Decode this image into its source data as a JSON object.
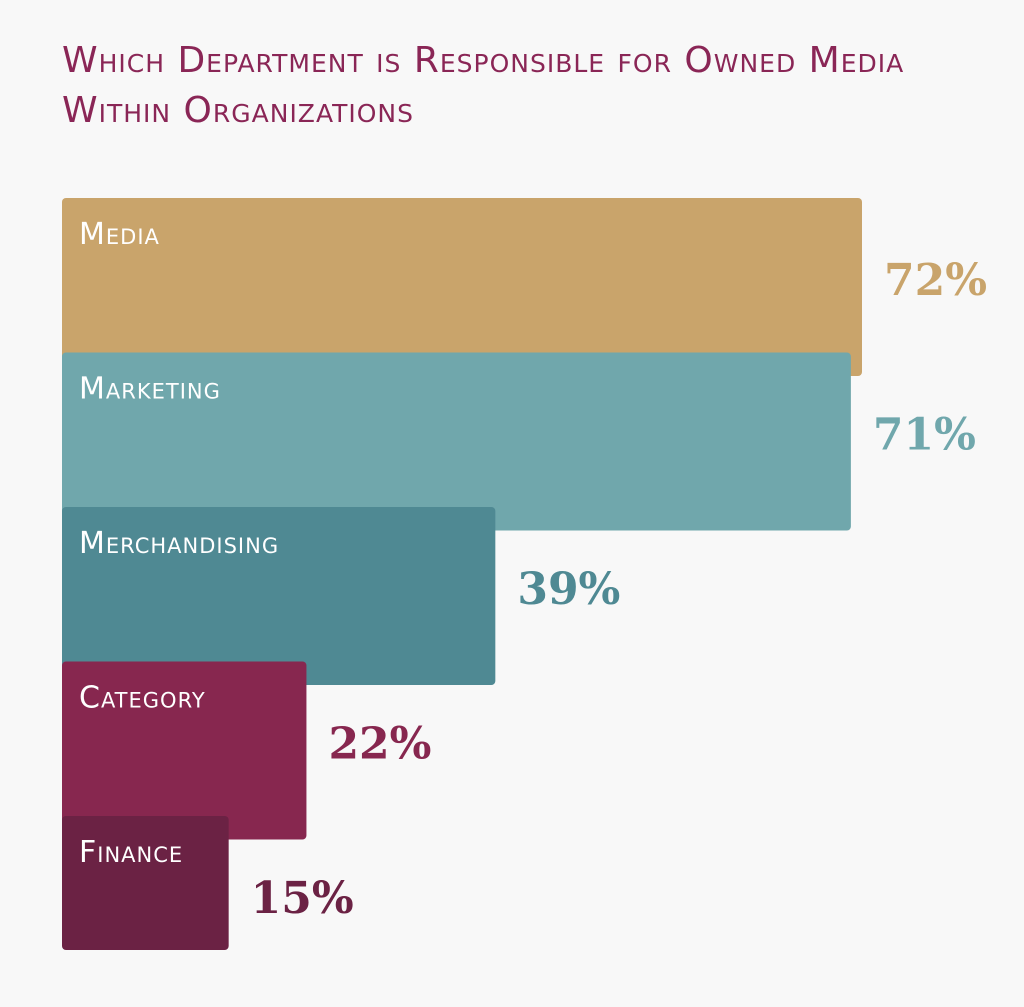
{
  "chart_data": {
    "type": "bar",
    "orientation": "horizontal",
    "title": "Which Department is Responsible for Owned Media Within Organizations",
    "categories": [
      "Media",
      "Marketing",
      "Merchandising",
      "Category",
      "Finance"
    ],
    "values": [
      72,
      71,
      39,
      22,
      15
    ],
    "value_labels": [
      "72%",
      "71%",
      "39%",
      "22%",
      "15%"
    ],
    "colors": [
      "#c9a46b",
      "#70a7ac",
      "#4f8993",
      "#87274f",
      "#6b2244"
    ],
    "xlim": [
      0,
      72
    ],
    "grid": false,
    "legend": "none"
  }
}
